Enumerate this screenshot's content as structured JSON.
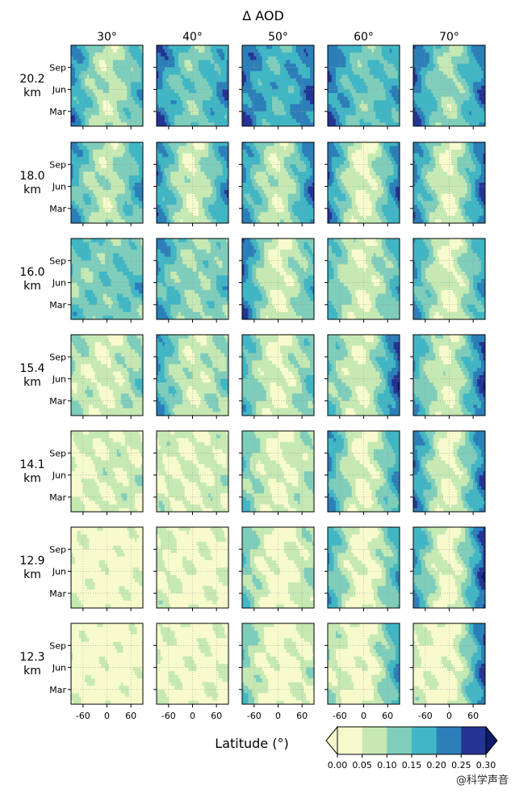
{
  "chart_data": {
    "type": "heatmap",
    "layout": "small-multiples grid",
    "title": "Δ AOD",
    "column_labels": [
      "30°",
      "40°",
      "50°",
      "60°",
      "70°"
    ],
    "row_labels": [
      "20.2\nkm",
      "18.0\nkm",
      "16.0\nkm",
      "15.4\nkm",
      "14.1\nkm",
      "12.9\nkm",
      "12.3\nkm"
    ],
    "row_labels_display": [
      [
        "20.2",
        "km"
      ],
      [
        "18.0",
        "km"
      ],
      [
        "16.0",
        "km"
      ],
      [
        "15.4",
        "km"
      ],
      [
        "14.1",
        "km"
      ],
      [
        "12.9",
        "km"
      ],
      [
        "12.3",
        "km"
      ]
    ],
    "xlabel": "Latitude (°)",
    "x_ticks": [
      "-60",
      "0",
      "60"
    ],
    "x_tick_values": [
      -60,
      0,
      60
    ],
    "x_range": [
      -90,
      90
    ],
    "y_ticks": [
      "Sep",
      "Jun",
      "Mar"
    ],
    "y_tick_values": [
      9,
      6,
      3
    ],
    "y_range": [
      1,
      12
    ],
    "grid": "dotted",
    "colorbar": {
      "levels": [
        0.0,
        0.05,
        0.1,
        0.15,
        0.2,
        0.25,
        0.3
      ],
      "tick_labels": [
        "0.00",
        "0.05",
        "0.10",
        "0.15",
        "0.20",
        "0.25",
        "0.30"
      ],
      "colors": [
        "#f7fbcc",
        "#c6e9b4",
        "#7fcdbb",
        "#41b6c4",
        "#2c7fb8",
        "#253494",
        "#0c1b6b"
      ],
      "extend": "both",
      "placement": "bottom-right"
    },
    "panels": [
      [
        0.07,
        0.17,
        0.06,
        0.22
      ],
      [
        0.12,
        0.21,
        0.12,
        0.24
      ],
      [
        0.16,
        0.24,
        0.04,
        0.24
      ],
      [
        0.13,
        0.18,
        0.04,
        0.24
      ],
      [
        0.09,
        0.24,
        0.05,
        0.25
      ],
      [
        0.07,
        0.19,
        0.11,
        0.2
      ],
      [
        0.05,
        0.22,
        0.02,
        0.22
      ],
      [
        0.06,
        0.24,
        0.04,
        0.21
      ],
      [
        0.03,
        0.23,
        0.05,
        0.23
      ],
      [
        0.04,
        0.26,
        0.03,
        0.22
      ],
      [
        0.13,
        0.14,
        0.14,
        0.14
      ],
      [
        0.1,
        0.14,
        0.12,
        0.2
      ],
      [
        0.04,
        0.16,
        0.07,
        0.24
      ],
      [
        0.05,
        0.17,
        0.02,
        0.16
      ],
      [
        0.04,
        0.2,
        0.02,
        0.2
      ],
      [
        0.05,
        0.12,
        0.09,
        0.1
      ],
      [
        0.06,
        0.12,
        0.06,
        0.2
      ],
      [
        0.04,
        0.15,
        0.04,
        0.17
      ],
      [
        0.05,
        0.27,
        0.03,
        0.14
      ],
      [
        0.05,
        0.27,
        0.04,
        0.18
      ],
      [
        0.06,
        0.06,
        0.06,
        0.04
      ],
      [
        0.05,
        0.07,
        0.04,
        0.06
      ],
      [
        0.04,
        0.1,
        0.03,
        0.14
      ],
      [
        0.03,
        0.2,
        0.05,
        0.21
      ],
      [
        0.03,
        0.25,
        0.03,
        0.23
      ],
      [
        0.02,
        0.03,
        0.02,
        0.03
      ],
      [
        0.03,
        0.04,
        0.02,
        0.06
      ],
      [
        0.02,
        0.1,
        0.03,
        0.14
      ],
      [
        0.02,
        0.18,
        0.02,
        0.18
      ],
      [
        0.02,
        0.28,
        0.02,
        0.2
      ],
      [
        0.02,
        0.02,
        0.01,
        0.02
      ],
      [
        0.03,
        0.04,
        0.03,
        0.04
      ],
      [
        0.02,
        0.07,
        0.03,
        0.13
      ],
      [
        0.02,
        0.2,
        0.03,
        0.08
      ],
      [
        0.02,
        0.26,
        0.02,
        0.06
      ]
    ]
  },
  "watermark": "@科学声音"
}
